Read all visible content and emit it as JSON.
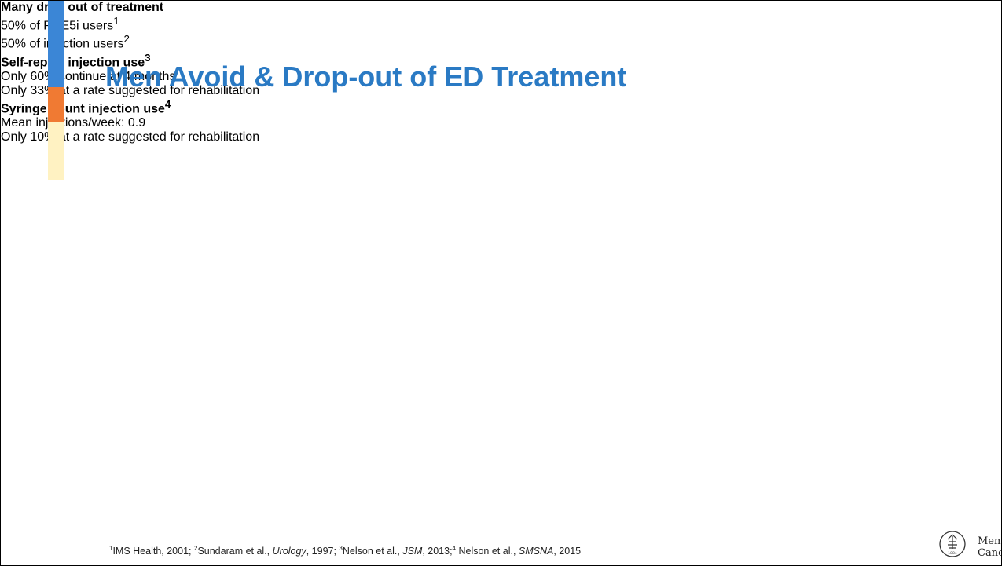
{
  "title": "Men Avoid & Drop-out of ED Treatment",
  "bullets": [
    {
      "text": "Many drop out of treatment",
      "items": [
        {
          "text": "50% of PDE5i users",
          "sup": "1"
        },
        {
          "text": "50% of injection users",
          "sup": "2"
        }
      ]
    },
    {
      "text": "Self-report injection use",
      "sup": "3",
      "items": [
        {
          "text": "Only 60% continue at 4 months"
        },
        {
          "text": "Only 33% at a rate suggested for rehabilitation"
        }
      ]
    },
    {
      "text": "Syringe count injection use",
      "sup": "4",
      "items": [
        {
          "text": "Mean injections/week: 0.9"
        },
        {
          "text": "Only 10% at a rate suggested for rehabilitation"
        }
      ]
    }
  ],
  "footnote": [
    {
      "sup": "1"
    },
    {
      "text": "IMS Health, 2001; "
    },
    {
      "sup": "2"
    },
    {
      "text": "Sundaram et al., "
    },
    {
      "italic": "Urology"
    },
    {
      "text": ", 1997; "
    },
    {
      "sup": "3"
    },
    {
      "text": "Nelson et al., "
    },
    {
      "italic": "JSM"
    },
    {
      "text": ", 2013;"
    },
    {
      "sup": "4"
    },
    {
      "text": " Nelson et al., "
    },
    {
      "italic": "SMSNA"
    },
    {
      "text": ", 2015"
    }
  ],
  "logo": {
    "year": "1884",
    "line1": "Memorial Sloan Kettering",
    "line2": "Cancer Center"
  }
}
